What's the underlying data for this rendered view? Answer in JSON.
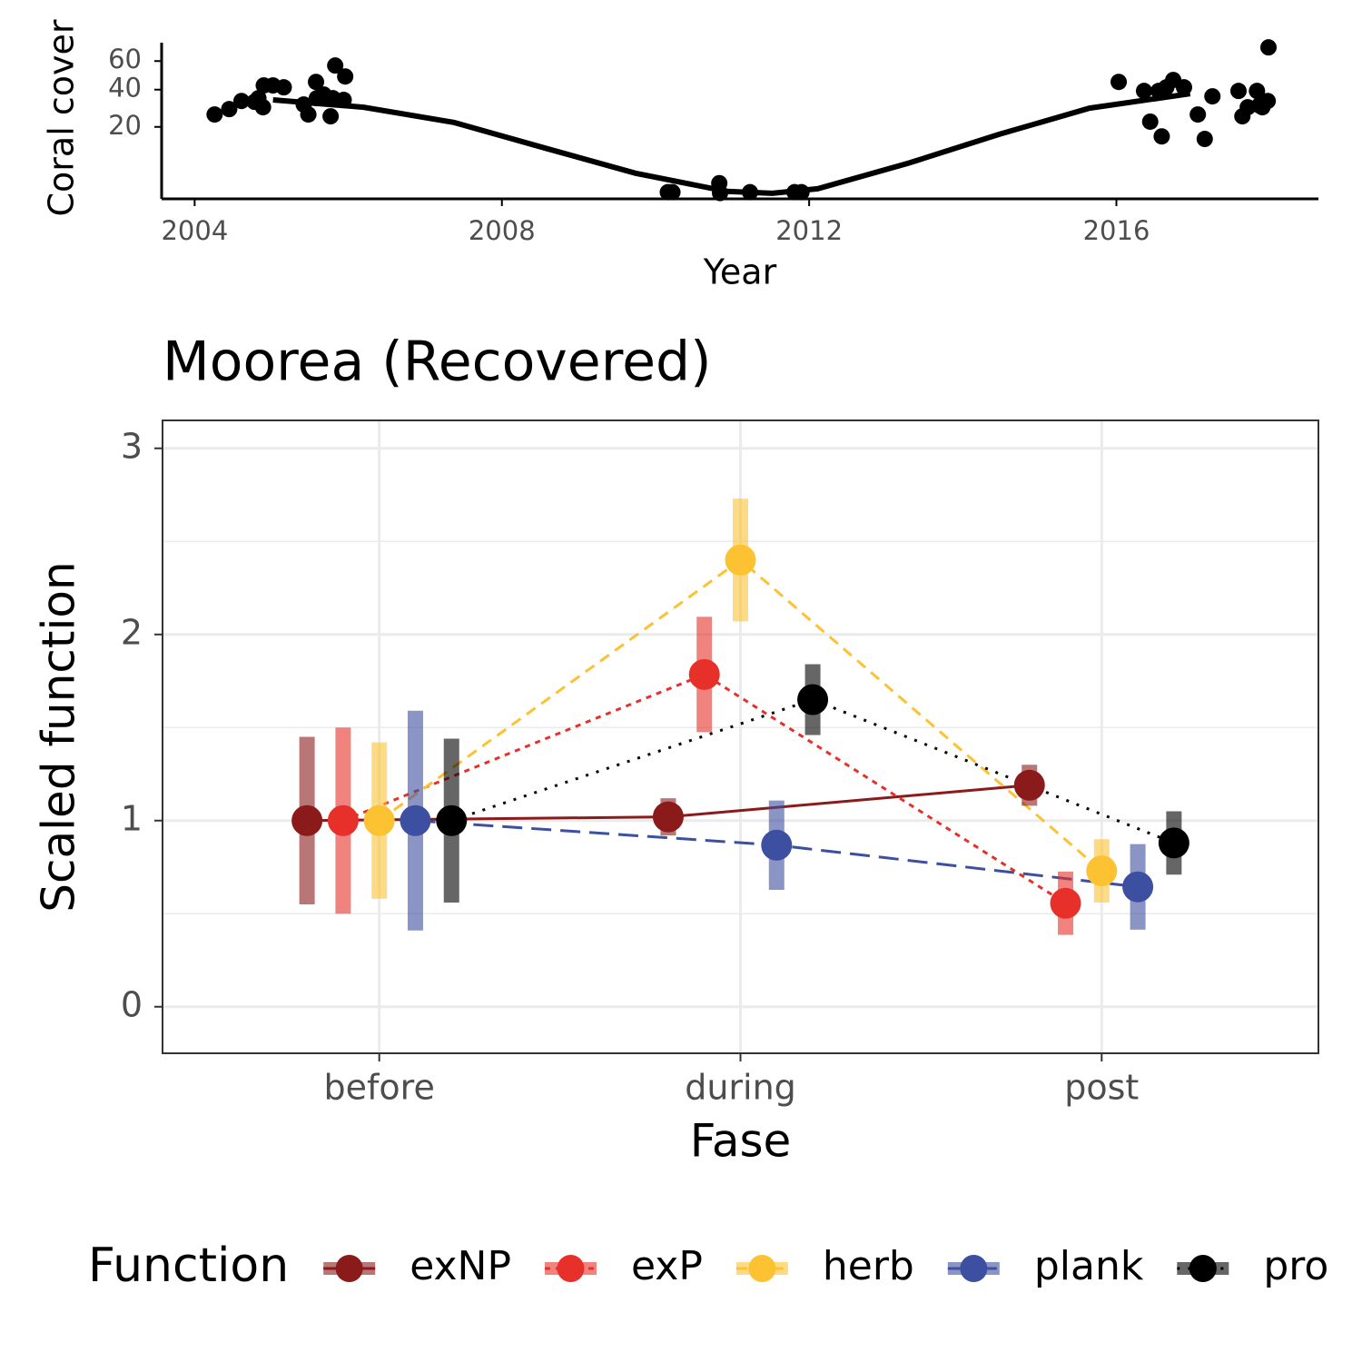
{
  "chart_data": [
    {
      "type": "scatter",
      "x_label": "Year",
      "y_label": "Coral cover",
      "yscale": "sqrt",
      "color": "#000000",
      "xlim": [
        2003.57,
        2018.63
      ],
      "xticks": [
        2004,
        2008,
        2012,
        2016
      ],
      "ylim": [
        0.8,
        75
      ],
      "yticks": [
        20,
        40,
        60
      ],
      "x": [
        2004.26,
        2004.45,
        2004.61,
        2004.78,
        2004.83,
        2004.89,
        2004.9,
        2005.02,
        2005.16,
        2005.42,
        2005.48,
        2005.58,
        2005.59,
        2005.68,
        2005.77,
        2005.8,
        2005.83,
        2005.94,
        2005.96,
        2010.16,
        2010.22,
        2010.83,
        2010.84,
        2011.23,
        2011.81,
        2011.9,
        2016.03,
        2016.36,
        2016.44,
        2016.55,
        2016.59,
        2016.65,
        2016.74,
        2016.88,
        2017.06,
        2017.15,
        2017.25,
        2017.59,
        2017.64,
        2017.71,
        2017.83,
        2017.86,
        2017.9,
        2017.97,
        2017.98
      ],
      "values": [
        25.9,
        28.7,
        33.2,
        32.7,
        34.8,
        29.7,
        42.7,
        42.7,
        41.5,
        31.2,
        25.9,
        45,
        34.8,
        37,
        25,
        34.8,
        56.6,
        33.8,
        48.7,
        1.5,
        1.5,
        2.8,
        1.4,
        1.5,
        1.5,
        1.5,
        45,
        39.2,
        22.4,
        39.2,
        16,
        41.5,
        46.3,
        41.5,
        25.9,
        15,
        35.9,
        39.2,
        25,
        29.7,
        39.2,
        30.7,
        29.7,
        33.2,
        71
      ],
      "trend": {
        "x": [
          2005.02,
          2006.2,
          2007.38,
          2008.56,
          2009.74,
          2010.93,
          2011.52,
          2012.11,
          2013.29,
          2014.47,
          2015.65,
          2016.96
        ],
        "values": [
          33.8,
          29.7,
          22,
          11.7,
          4.7,
          1.6,
          1.37,
          1.95,
          7.1,
          16.8,
          29.2,
          37.5
        ]
      }
    },
    {
      "type": "pointrange",
      "title": "Moorea (Recovered)",
      "x_label": "Fase",
      "y_label": "Scaled function",
      "legend_title": "Function",
      "legend": "bottom",
      "grid": true,
      "minor_grid": true,
      "categories": [
        "before",
        "during",
        "post"
      ],
      "ylim": [
        -0.25,
        3.15
      ],
      "yticks": [
        0,
        1,
        2,
        3
      ],
      "series": [
        {
          "name": "exNP",
          "color": "#8b1a1a",
          "linestyle": "solid",
          "values": [
            1.0,
            1.02,
            1.19
          ],
          "errors": [
            0.45,
            0.1,
            0.11
          ]
        },
        {
          "name": "exP",
          "color": "#e8302a",
          "linestyle": "short-dash",
          "values": [
            1.0,
            1.785,
            0.556
          ],
          "errors": [
            0.5,
            0.31,
            0.17
          ]
        },
        {
          "name": "herb",
          "color": "#fcc232",
          "linestyle": "dash",
          "values": [
            1.0,
            2.4,
            0.73
          ],
          "errors": [
            0.42,
            0.33,
            0.17
          ]
        },
        {
          "name": "plank",
          "color": "#3c4fa0",
          "linestyle": "long-dash",
          "values": [
            1.0,
            0.868,
            0.644
          ],
          "errors": [
            0.59,
            0.24,
            0.23
          ]
        },
        {
          "name": "pro",
          "color": "#000000",
          "linestyle": "dot",
          "values": [
            1.0,
            1.65,
            0.88
          ],
          "errors": [
            0.44,
            0.19,
            0.17
          ]
        }
      ]
    }
  ]
}
